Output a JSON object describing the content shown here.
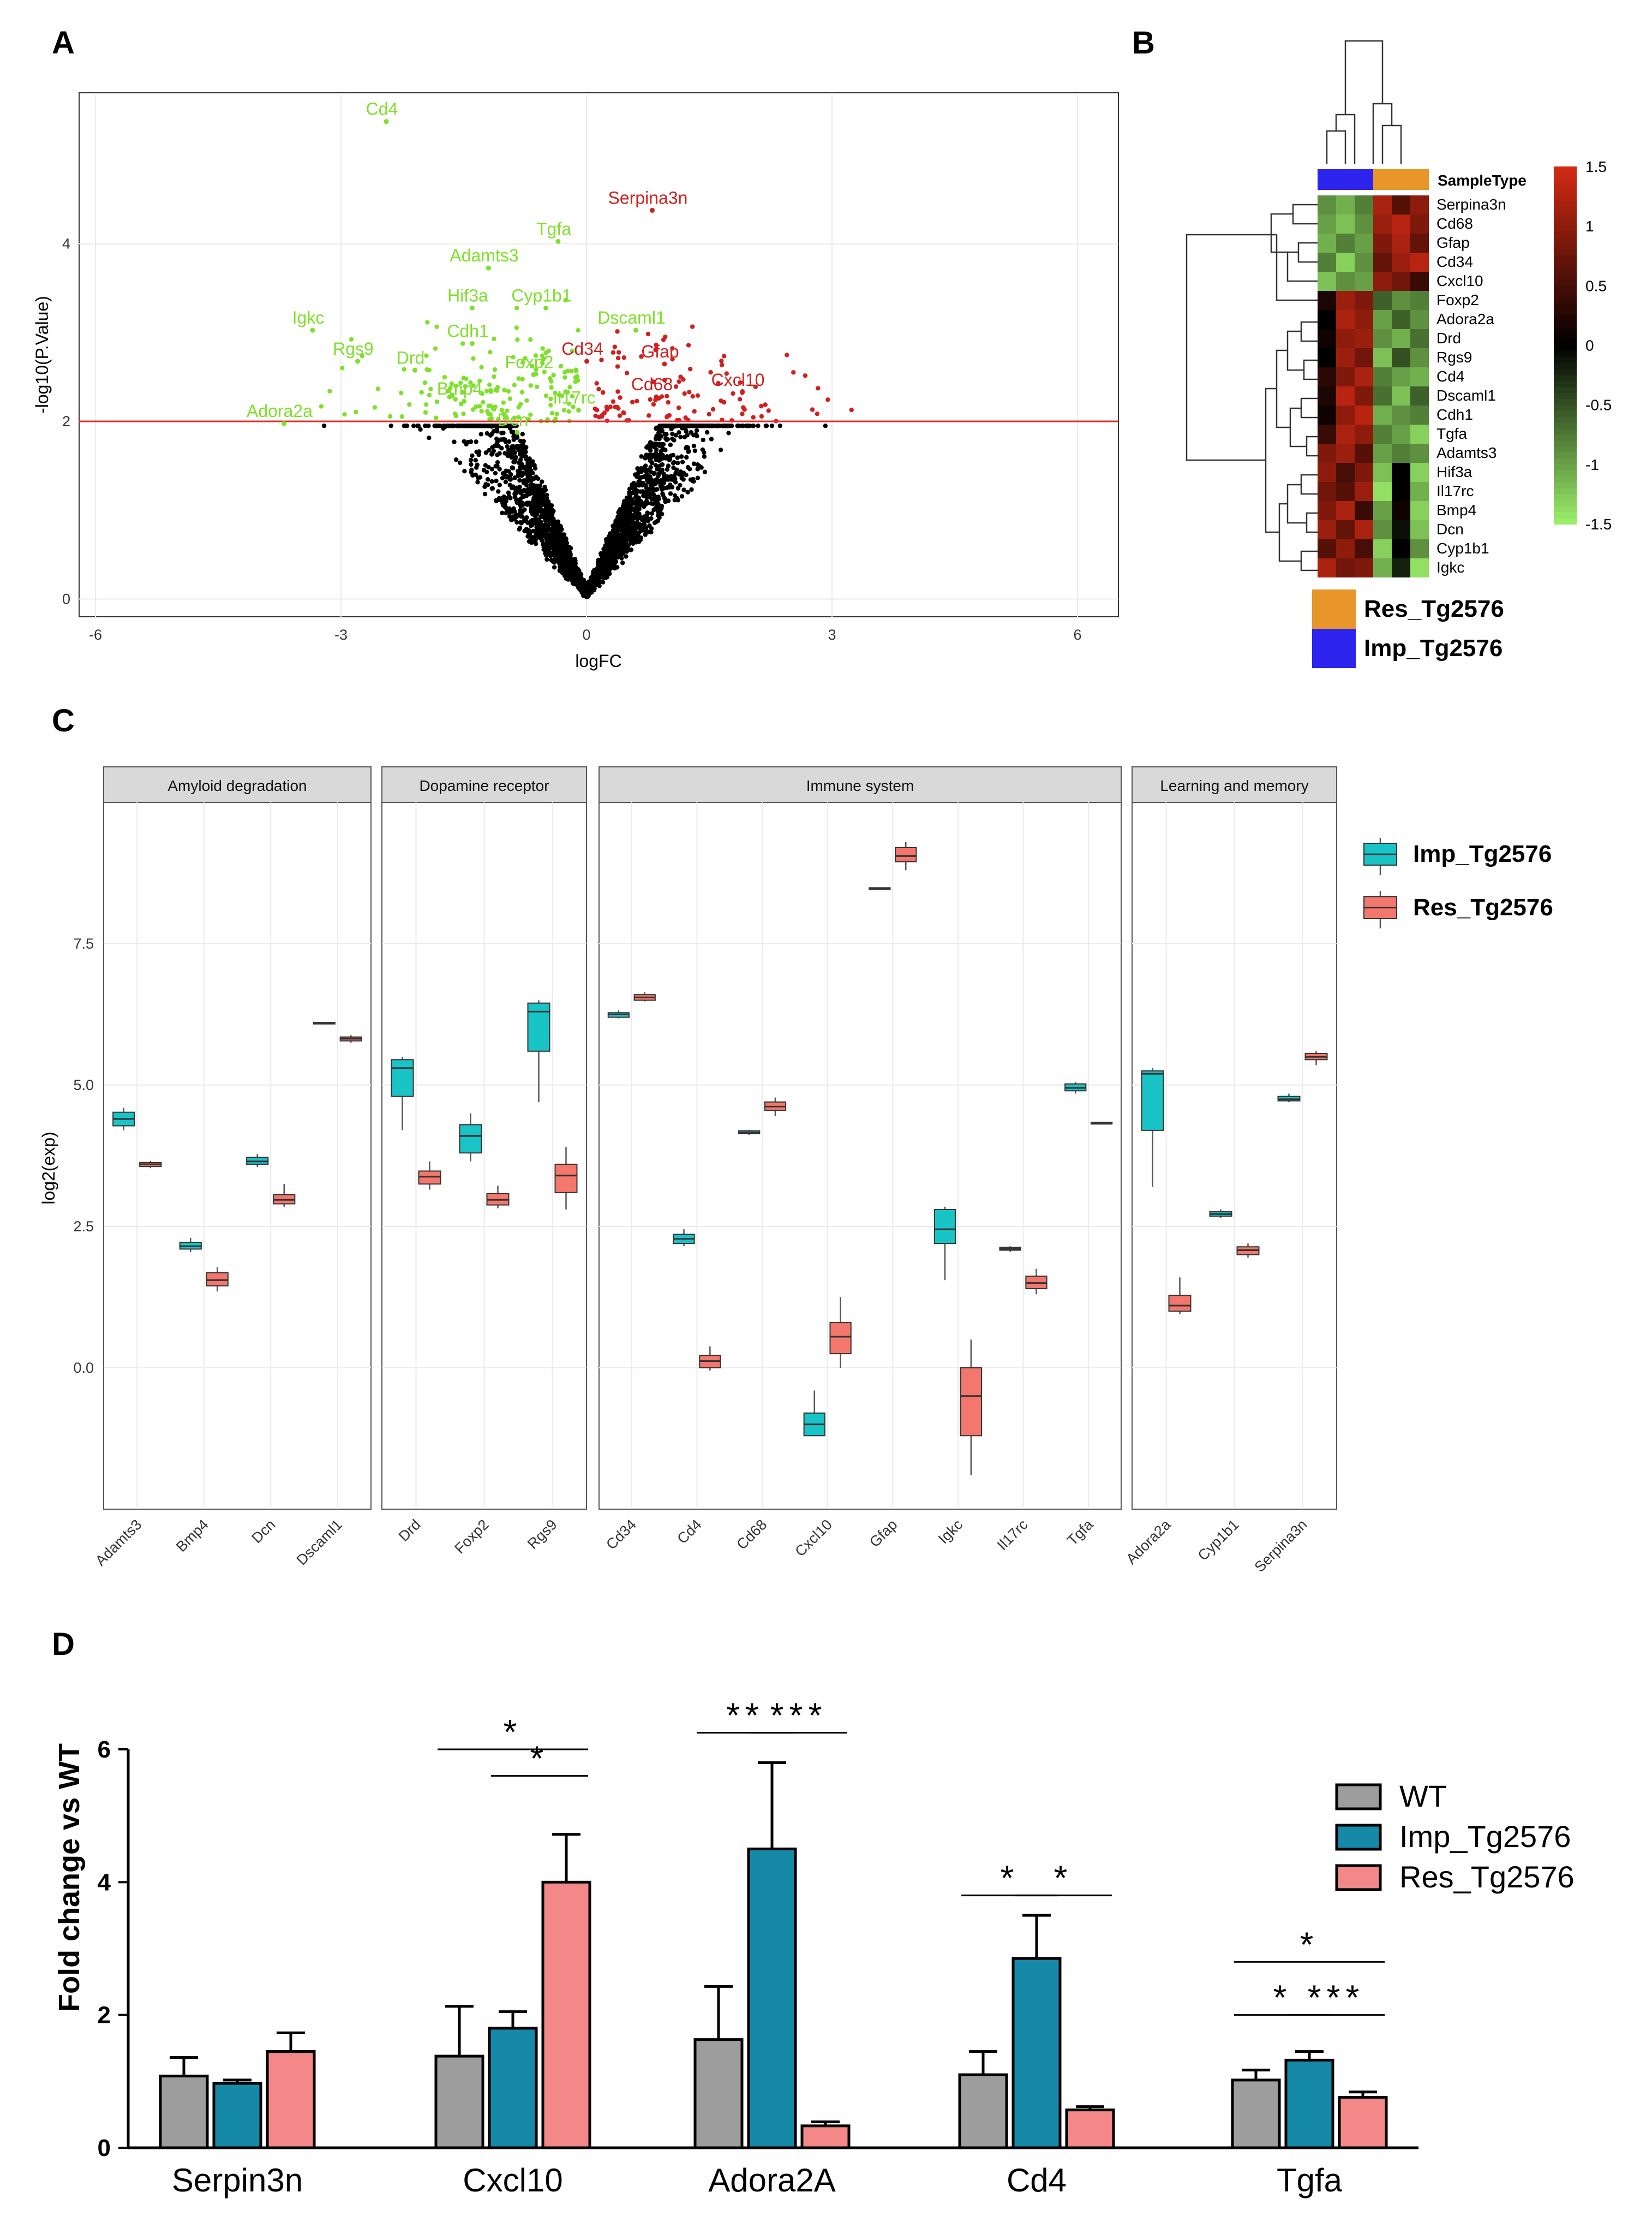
{
  "panels": {
    "a": "A",
    "b": "B",
    "c": "C",
    "d": "D"
  },
  "chart_data": [
    {
      "panel": "A",
      "type": "scatter",
      "title": "",
      "xlabel": "logFC",
      "ylabel": "-log10(P.Value)",
      "xlim": [
        -6.2,
        6.5
      ],
      "ylim": [
        -0.2,
        5.7
      ],
      "xticks": [
        -6,
        -3,
        0,
        3,
        6
      ],
      "yticks": [
        0,
        2,
        4
      ],
      "threshold": 2,
      "colors": {
        "down": "#7fe02b",
        "up": "#d11f1f",
        "ns": "#000000",
        "line": "#e03030"
      },
      "labels": [
        {
          "text": "Cd4",
          "x": -2.5,
          "y": 5.45,
          "group": "down"
        },
        {
          "text": "Serpina3n",
          "x": 0.75,
          "y": 4.45,
          "group": "up"
        },
        {
          "text": "Tgfa",
          "x": -0.4,
          "y": 4.1,
          "group": "down"
        },
        {
          "text": "Adamts3",
          "x": -1.25,
          "y": 3.8,
          "group": "down"
        },
        {
          "text": "Hif3a",
          "x": -1.45,
          "y": 3.35,
          "group": "down"
        },
        {
          "text": "Cyp1b1",
          "x": -0.55,
          "y": 3.35,
          "group": "down"
        },
        {
          "text": "Igkc",
          "x": -3.4,
          "y": 3.1,
          "group": "down"
        },
        {
          "text": "Dscaml1",
          "x": 0.55,
          "y": 3.1,
          "group": "down"
        },
        {
          "text": "Cdh1",
          "x": -1.45,
          "y": 2.95,
          "group": "down"
        },
        {
          "text": "Rgs9",
          "x": -2.85,
          "y": 2.75,
          "group": "down"
        },
        {
          "text": "Cd34",
          "x": -0.05,
          "y": 2.75,
          "group": "up"
        },
        {
          "text": "Gfap",
          "x": 0.9,
          "y": 2.72,
          "group": "up"
        },
        {
          "text": "Drd",
          "x": -2.15,
          "y": 2.65,
          "group": "down"
        },
        {
          "text": "Foxp2",
          "x": -0.7,
          "y": 2.6,
          "group": "down"
        },
        {
          "text": "Cxcl10",
          "x": 1.85,
          "y": 2.4,
          "group": "up"
        },
        {
          "text": "Cd68",
          "x": 0.8,
          "y": 2.35,
          "group": "up"
        },
        {
          "text": "Bmp4",
          "x": -1.55,
          "y": 2.3,
          "group": "down"
        },
        {
          "text": "Il17rc",
          "x": -0.15,
          "y": 2.2,
          "group": "down"
        },
        {
          "text": "Adora2a",
          "x": -3.75,
          "y": 2.05,
          "group": "down"
        },
        {
          "text": "Dcn",
          "x": -0.9,
          "y": 1.95,
          "group": "down"
        }
      ]
    },
    {
      "panel": "B",
      "type": "heatmap",
      "annotation_title": "SampleType",
      "rows": [
        "Serpina3n",
        "Cd68",
        "Gfap",
        "Cd34",
        "Cxcl10",
        "Foxp2",
        "Adora2a",
        "Drd",
        "Rgs9",
        "Cd4",
        "Dscaml1",
        "Cdh1",
        "Tgfa",
        "Adamts3",
        "Hif3a",
        "Il17rc",
        "Bmp4",
        "Dcn",
        "Cyp1b1",
        "Igkc"
      ],
      "column_groups": [
        "Imp_Tg2576",
        "Imp_Tg2576",
        "Imp_Tg2576",
        "Res_Tg2576",
        "Res_Tg2576",
        "Res_Tg2576"
      ],
      "values": [
        [
          -0.9,
          -1.1,
          -0.8,
          1.2,
          0.6,
          1.0
        ],
        [
          -1.0,
          -1.2,
          -0.9,
          1.1,
          1.3,
          0.9
        ],
        [
          -1.1,
          -0.8,
          -1.0,
          0.9,
          1.2,
          0.7
        ],
        [
          -0.8,
          -1.3,
          -0.9,
          0.7,
          1.1,
          1.3
        ],
        [
          -1.2,
          -0.9,
          -1.0,
          1.0,
          0.8,
          0.4
        ],
        [
          0.2,
          1.1,
          0.9,
          -0.6,
          -0.9,
          -0.8
        ],
        [
          0.0,
          1.2,
          1.0,
          -1.0,
          -0.6,
          -0.9
        ],
        [
          0.1,
          1.0,
          1.1,
          -0.9,
          -1.1,
          -0.7
        ],
        [
          0.0,
          1.1,
          0.8,
          -1.2,
          -0.5,
          -0.9
        ],
        [
          0.3,
          0.9,
          1.2,
          -0.8,
          -1.0,
          -1.1
        ],
        [
          0.2,
          1.3,
          0.9,
          -0.7,
          -1.2,
          -0.6
        ],
        [
          0.1,
          1.0,
          1.3,
          -1.1,
          -0.9,
          -0.8
        ],
        [
          0.4,
          1.2,
          1.0,
          -0.8,
          -1.0,
          -1.3
        ],
        [
          0.9,
          1.1,
          0.6,
          -1.0,
          -0.8,
          -0.9
        ],
        [
          1.0,
          0.5,
          0.9,
          -1.2,
          0.0,
          -1.3
        ],
        [
          0.8,
          0.6,
          1.1,
          -1.4,
          0.0,
          -1.1
        ],
        [
          0.9,
          1.2,
          0.4,
          -1.0,
          0.1,
          -1.3
        ],
        [
          1.1,
          0.7,
          1.2,
          -0.9,
          -0.1,
          -1.2
        ],
        [
          0.6,
          1.0,
          0.5,
          -1.3,
          0.0,
          -0.9
        ],
        [
          1.2,
          0.8,
          0.9,
          -1.1,
          -0.2,
          -1.4
        ]
      ],
      "scale": {
        "min": -1.5,
        "max": 1.5,
        "ticks": [
          "1.5",
          "1",
          "0.5",
          "0",
          "-0.5",
          "-1",
          "-1.5"
        ],
        "colors": [
          "#9cf06a",
          "#000000",
          "#d42a14"
        ]
      },
      "legend": [
        {
          "label": "Res_Tg2576",
          "color": "#e8962a"
        },
        {
          "label": "Imp_Tg2576",
          "color": "#2d24ee"
        }
      ]
    },
    {
      "panel": "C",
      "type": "box",
      "ylabel": "log2(exp)",
      "ylim": [
        -2.5,
        10.0
      ],
      "yticks": [
        "0.0",
        "2.5",
        "5.0",
        "7.5"
      ],
      "series": [
        {
          "name": "Imp_Tg2576",
          "color": "#19c4c7"
        },
        {
          "name": "Res_Tg2576",
          "color": "#f4776d"
        }
      ],
      "facets": [
        {
          "title": "Amyloid degradation",
          "genes": [
            {
              "gene": "Adamts3",
              "imp": [
                4.2,
                4.28,
                4.4,
                4.52,
                4.6
              ],
              "res": [
                3.53,
                3.56,
                3.6,
                3.63,
                3.66
              ]
            },
            {
              "gene": "Bmp4",
              "imp": [
                2.05,
                2.1,
                2.15,
                2.22,
                2.3
              ],
              "res": [
                1.35,
                1.45,
                1.55,
                1.68,
                1.78
              ]
            },
            {
              "gene": "Dcn",
              "imp": [
                3.55,
                3.6,
                3.65,
                3.72,
                3.78
              ],
              "res": [
                2.85,
                2.9,
                2.97,
                3.06,
                3.25
              ]
            },
            {
              "gene": "Dscaml1",
              "imp": [
                6.07,
                6.08,
                6.1,
                6.11,
                6.12
              ],
              "res": [
                5.75,
                5.78,
                5.82,
                5.85,
                5.88
              ]
            }
          ]
        },
        {
          "title": "Dopamine receptor",
          "genes": [
            {
              "gene": "Drd",
              "imp": [
                4.2,
                4.8,
                5.3,
                5.45,
                5.5
              ],
              "res": [
                3.15,
                3.25,
                3.38,
                3.48,
                3.65
              ]
            },
            {
              "gene": "Foxp2",
              "imp": [
                3.65,
                3.8,
                4.1,
                4.3,
                4.5
              ],
              "res": [
                2.82,
                2.88,
                2.97,
                3.08,
                3.22
              ]
            },
            {
              "gene": "Rgs9",
              "imp": [
                4.7,
                5.6,
                6.3,
                6.45,
                6.5
              ],
              "res": [
                2.8,
                3.1,
                3.4,
                3.6,
                3.9
              ]
            }
          ]
        },
        {
          "title": "Immune system",
          "genes": [
            {
              "gene": "Cd34",
              "imp": [
                6.18,
                6.2,
                6.25,
                6.28,
                6.32
              ],
              "res": [
                6.48,
                6.5,
                6.55,
                6.6,
                6.64
              ]
            },
            {
              "gene": "Cd4",
              "imp": [
                2.15,
                2.2,
                2.28,
                2.36,
                2.45
              ],
              "res": [
                -0.05,
                0.0,
                0.12,
                0.22,
                0.38
              ]
            },
            {
              "gene": "Cd68",
              "imp": [
                4.12,
                4.14,
                4.16,
                4.19,
                4.21
              ],
              "res": [
                4.45,
                4.55,
                4.62,
                4.7,
                4.78
              ]
            },
            {
              "gene": "Cxcl10",
              "imp": [
                -1.2,
                -1.2,
                -1.0,
                -0.8,
                -0.4
              ],
              "res": [
                0.0,
                0.25,
                0.55,
                0.8,
                1.25
              ]
            },
            {
              "gene": "Gfap",
              "imp": [
                8.45,
                8.46,
                8.48,
                8.49,
                8.5
              ],
              "res": [
                8.8,
                8.95,
                9.05,
                9.2,
                9.3
              ]
            },
            {
              "gene": "Igkc",
              "imp": [
                1.55,
                2.2,
                2.45,
                2.8,
                2.85
              ],
              "res": [
                -1.9,
                -1.2,
                -0.5,
                0.0,
                0.5
              ]
            },
            {
              "gene": "Il17rc",
              "imp": [
                2.05,
                2.08,
                2.1,
                2.13,
                2.15
              ],
              "res": [
                1.3,
                1.4,
                1.5,
                1.62,
                1.75
              ]
            },
            {
              "gene": "Tgfa",
              "imp": [
                4.85,
                4.9,
                4.95,
                5.02,
                5.05
              ],
              "res": [
                4.31,
                4.32,
                4.33,
                4.34,
                4.35
              ]
            }
          ]
        },
        {
          "title": "Learning and memory",
          "genes": [
            {
              "gene": "Adora2a",
              "imp": [
                3.2,
                4.2,
                5.2,
                5.25,
                5.3
              ],
              "res": [
                0.95,
                1.0,
                1.1,
                1.28,
                1.6
              ]
            },
            {
              "gene": "Cyp1b1",
              "imp": [
                2.65,
                2.68,
                2.72,
                2.76,
                2.8
              ],
              "res": [
                1.95,
                2.0,
                2.08,
                2.14,
                2.2
              ]
            },
            {
              "gene": "Serpina3n",
              "imp": [
                4.7,
                4.72,
                4.75,
                4.8,
                4.85
              ],
              "res": [
                5.35,
                5.45,
                5.5,
                5.56,
                5.6
              ]
            }
          ]
        }
      ]
    },
    {
      "panel": "D",
      "type": "bar",
      "ylabel": "Fold change vs WT",
      "ylim": [
        0,
        6
      ],
      "yticks": [
        "0",
        "2",
        "4",
        "6"
      ],
      "categories": [
        "Serpin3n",
        "Cxcl10",
        "Adora2A",
        "Cd4",
        "Tgfa"
      ],
      "series": [
        {
          "name": "WT",
          "color": "#9d9d9d",
          "values": [
            1.08,
            1.38,
            1.63,
            1.1,
            1.02
          ],
          "errors": [
            0.28,
            0.75,
            0.8,
            0.35,
            0.15
          ]
        },
        {
          "name": "Imp_Tg2576",
          "color": "#1689a8",
          "values": [
            0.97,
            1.8,
            4.5,
            2.85,
            1.32
          ],
          "errors": [
            0.05,
            0.25,
            1.3,
            0.65,
            0.13
          ]
        },
        {
          "name": "Res_Tg2576",
          "color": "#f48787",
          "values": [
            1.45,
            4.0,
            0.33,
            0.57,
            0.76
          ],
          "errors": [
            0.28,
            0.72,
            0.06,
            0.05,
            0.08
          ]
        }
      ],
      "significance": [
        {
          "cat": 1,
          "from": 0,
          "to": 2,
          "label": "*",
          "level": 6
        },
        {
          "cat": 1,
          "from": 1,
          "to": 2,
          "label": "*",
          "level": 5.6
        },
        {
          "cat": 2,
          "from": 0,
          "to": 1,
          "label": "**",
          "level": 6.25
        },
        {
          "cat": 2,
          "from": 1,
          "to": 2,
          "label": "***",
          "level": 6.25
        },
        {
          "cat": 3,
          "from": 0,
          "to": 1,
          "label": "*",
          "level": 3.8
        },
        {
          "cat": 3,
          "from": 1,
          "to": 2,
          "label": "*",
          "level": 3.8
        },
        {
          "cat": 4,
          "from": 0,
          "to": 2,
          "label": "*",
          "level": 2.8
        },
        {
          "cat": 4,
          "from": 0,
          "to": 1,
          "label": "*",
          "level": 2.0
        },
        {
          "cat": 4,
          "from": 1,
          "to": 2,
          "label": "***",
          "level": 2.0
        }
      ]
    }
  ]
}
